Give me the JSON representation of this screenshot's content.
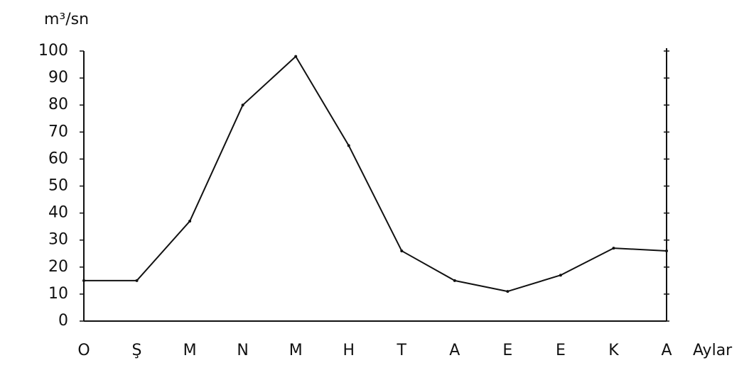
{
  "chart_data": {
    "type": "line",
    "y_label": "m³/sn",
    "x_label": "Aylar",
    "categories": [
      "O",
      "Ş",
      "M",
      "N",
      "M",
      "H",
      "T",
      "A",
      "E",
      "E",
      "K",
      "A"
    ],
    "values": [
      15,
      15,
      37,
      80,
      98,
      65,
      26,
      15,
      11,
      17,
      27,
      26
    ],
    "color": "#111111",
    "ylim": [
      0,
      100
    ],
    "yticks": [
      0,
      10,
      20,
      30,
      40,
      50,
      60,
      70,
      80,
      90,
      100
    ],
    "grid": false
  }
}
